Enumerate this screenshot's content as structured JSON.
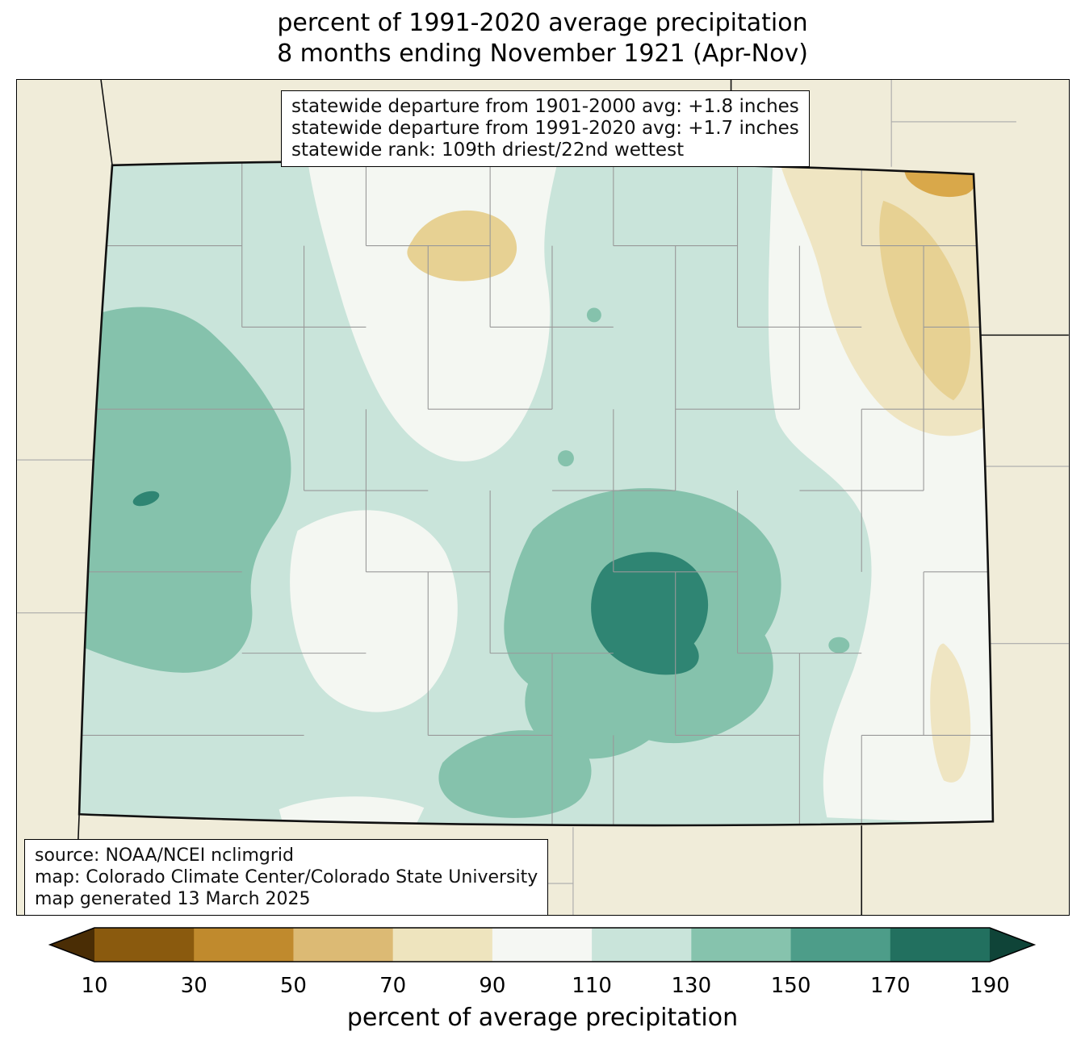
{
  "title": {
    "line1": "percent of 1991-2020 average precipitation",
    "line2": "8 months ending November 1921 (Apr-Nov)"
  },
  "stats_box": {
    "line1": "statewide departure from 1901-2000 avg: +1.8 inches",
    "line2": "statewide departure from 1991-2020 avg: +1.7 inches",
    "line3": "statewide rank: 109th driest/22nd wettest"
  },
  "source_box": {
    "line1": "source: NOAA/NCEI nclimgrid",
    "line2": "map: Colorado Climate Center/Colorado State University",
    "line3": "map generated 13 March 2025"
  },
  "colorbar": {
    "label": "percent of average precipitation",
    "ticks": [
      10,
      30,
      50,
      70,
      90,
      110,
      130,
      150,
      170,
      190
    ],
    "segment_colors": [
      "#4a2d05",
      "#8a5a0e",
      "#c08a2d",
      "#dcba74",
      "#eee4be",
      "#f5f7f3",
      "#c9e4da",
      "#86c3ad",
      "#4d9d89",
      "#22705f",
      "#0f4438"
    ],
    "outline_color": "#000000"
  },
  "map": {
    "region": "Colorado",
    "colors": {
      "background_outside": "#f0ecd9",
      "state_base": "#c9e4da",
      "offwhite": "#f4f7f2",
      "tan_pale": "#efe5c2",
      "tan_medium": "#e7d193",
      "tan_dark": "#d9a84a",
      "teal_medium": "#85c2ac",
      "teal_dark": "#2f8573",
      "county_line": "#999999",
      "neighbor_county_line": "#aaaaaa",
      "state_line": "#111111"
    }
  }
}
